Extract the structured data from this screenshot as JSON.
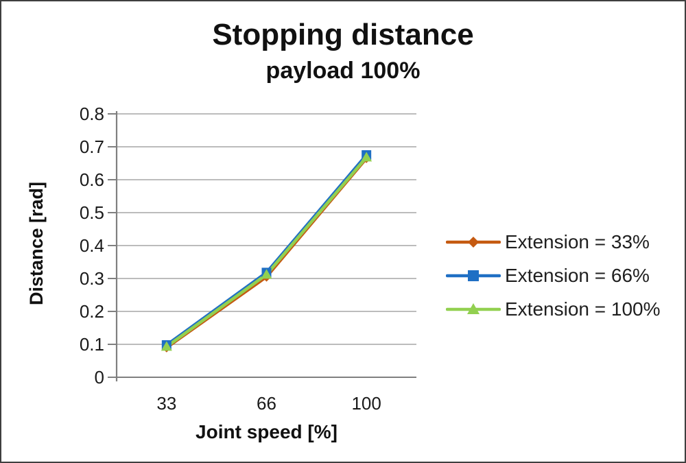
{
  "figure": {
    "background": "#ffffff",
    "frame_color": "#3f3f3f"
  },
  "chart_data": {
    "type": "line",
    "title": "Stopping distance",
    "subtitle": "payload 100%",
    "xlabel": "Joint speed [%]",
    "ylabel": "Distance [rad]",
    "categories": [
      "33",
      "66",
      "100"
    ],
    "series": [
      {
        "name": "Extension = 33%",
        "marker": "diamond",
        "color": "#C55A11",
        "values": [
          0.09,
          0.305,
          0.665
        ]
      },
      {
        "name": "Extension = 66%",
        "marker": "square",
        "color": "#1F6FC4",
        "values": [
          0.098,
          0.318,
          0.675
        ]
      },
      {
        "name": "Extension = 100%",
        "marker": "triangle",
        "color": "#92D050",
        "values": [
          0.093,
          0.312,
          0.668
        ]
      }
    ],
    "ylim": [
      0,
      0.8
    ],
    "ytick_step": 0.1,
    "ytick_labels": [
      "0",
      "0.1",
      "0.2",
      "0.3",
      "0.4",
      "0.5",
      "0.6",
      "0.7",
      "0.8"
    ],
    "grid": true,
    "legend_position": "right",
    "gridline_color": "#A6A6A6",
    "axis_color": "#7F7F7F",
    "tick_label_color": "#1A1A1A",
    "tick_label_size": 26
  }
}
